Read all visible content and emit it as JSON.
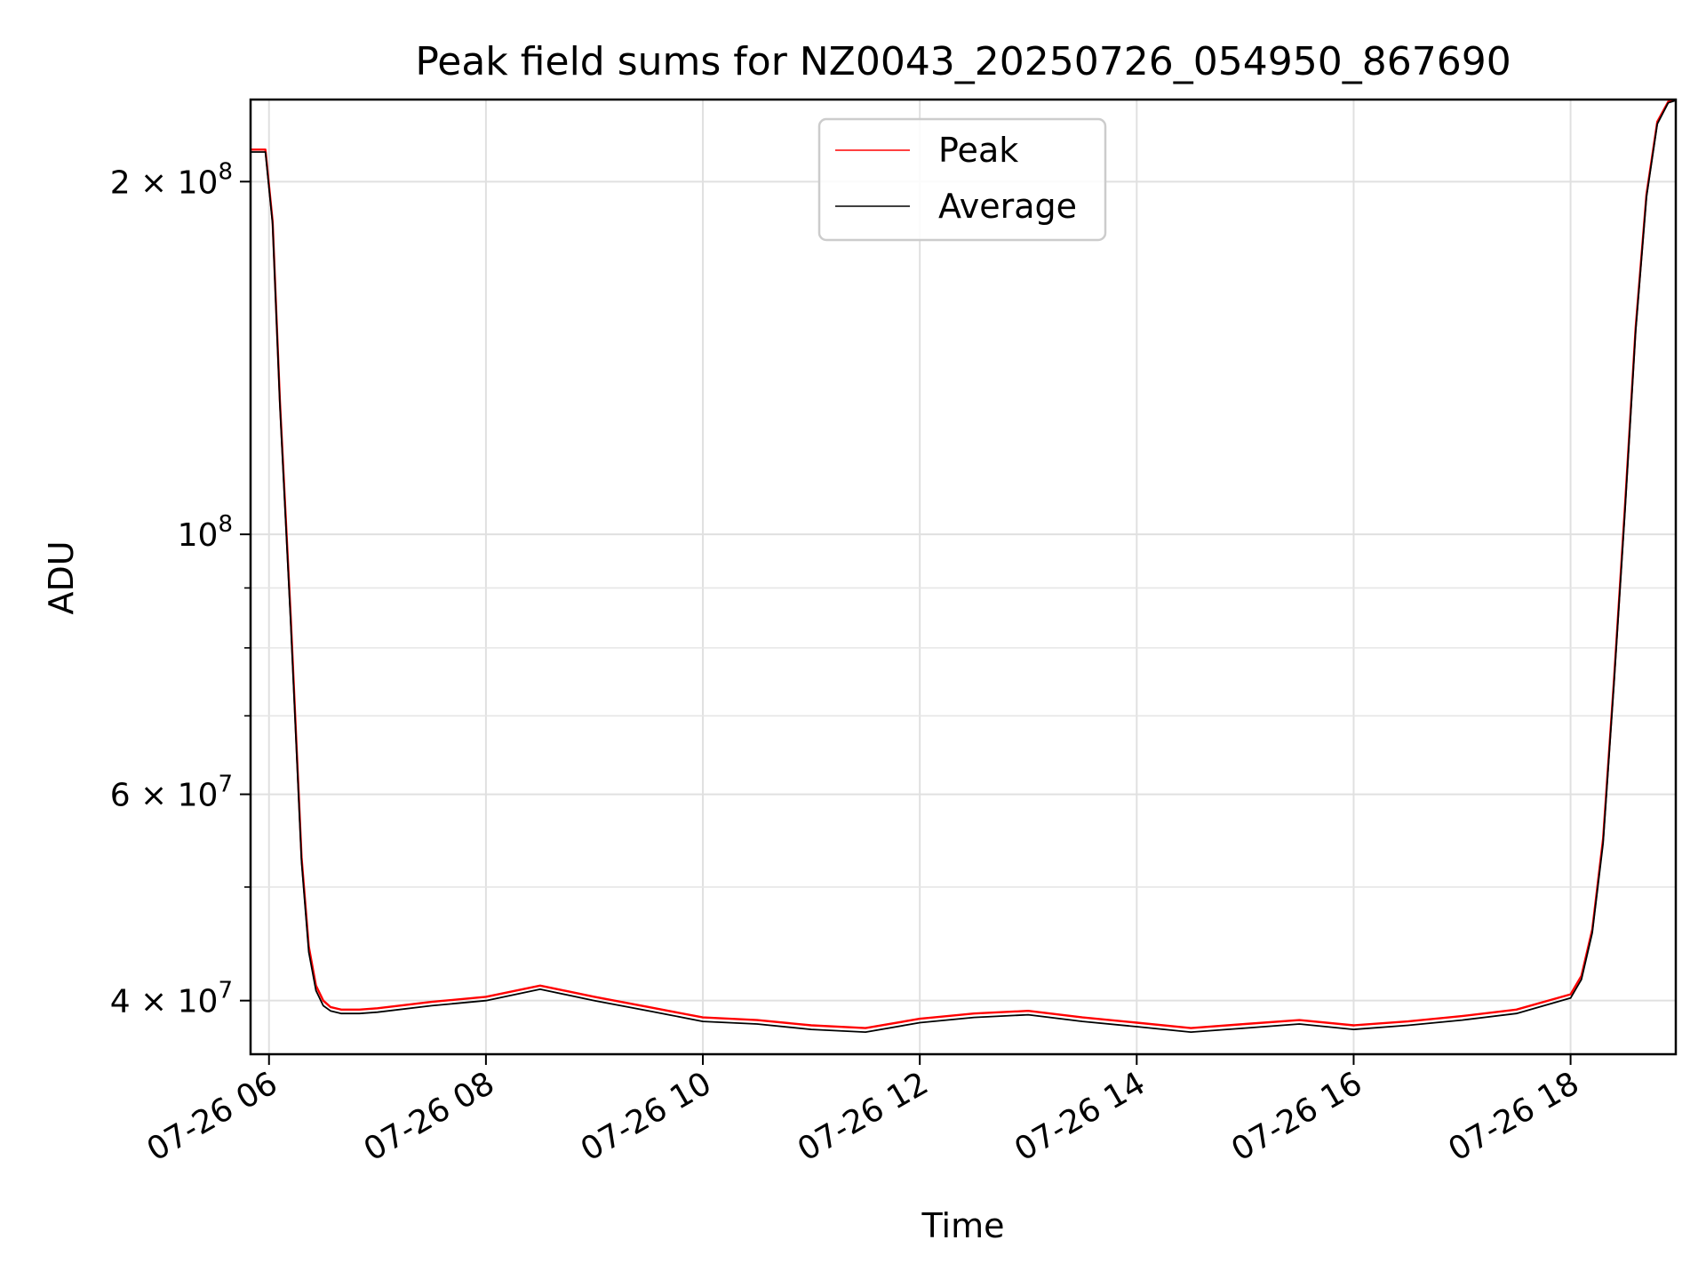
{
  "chart_data": {
    "type": "line",
    "title": "Peak field sums for NZ0043_20250726_054950_867690",
    "xlabel": "Time",
    "ylabel": "ADU",
    "y_scale": "log",
    "ylim": [
      36000000,
      235000000
    ],
    "xlim_hours": [
      5.83,
      18.97
    ],
    "grid": true,
    "legend_position": "top-center",
    "x_ticks": [
      {
        "hour": 6,
        "label": "07-26 06"
      },
      {
        "hour": 8,
        "label": "07-26 08"
      },
      {
        "hour": 10,
        "label": "07-26 10"
      },
      {
        "hour": 12,
        "label": "07-26 12"
      },
      {
        "hour": 14,
        "label": "07-26 14"
      },
      {
        "hour": 16,
        "label": "07-26 16"
      },
      {
        "hour": 18,
        "label": "07-26 18"
      }
    ],
    "y_ticks": [
      {
        "value": 40000000,
        "base": "4 × 10",
        "exp": "7"
      },
      {
        "value": 60000000,
        "base": "6 × 10",
        "exp": "7"
      },
      {
        "value": 100000000,
        "base": "10",
        "exp": "8"
      },
      {
        "value": 200000000,
        "base": "2 × 10",
        "exp": "8"
      }
    ],
    "y_minor_ticks": [
      50000000,
      70000000,
      80000000,
      90000000
    ],
    "series": [
      {
        "name": "Peak",
        "color": "#ff0000",
        "x": [
          "07-26 05:50",
          "07-26 05:58",
          "07-26 06:02",
          "07-26 06:06",
          "07-26 06:12",
          "07-26 06:18",
          "07-26 06:22",
          "07-26 06:26",
          "07-26 06:30",
          "07-26 06:34",
          "07-26 06:40",
          "07-26 06:50",
          "07-26 07:00",
          "07-26 07:30",
          "07-26 08:00",
          "07-26 08:30",
          "07-26 09:00",
          "07-26 09:30",
          "07-26 10:00",
          "07-26 10:30",
          "07-26 11:00",
          "07-26 11:30",
          "07-26 12:00",
          "07-26 12:30",
          "07-26 13:00",
          "07-26 13:30",
          "07-26 14:00",
          "07-26 14:30",
          "07-26 15:00",
          "07-26 15:30",
          "07-26 16:00",
          "07-26 16:30",
          "07-26 17:00",
          "07-26 17:30",
          "07-26 18:00",
          "07-26 18:06",
          "07-26 18:12",
          "07-26 18:18",
          "07-26 18:24",
          "07-26 18:30",
          "07-26 18:36",
          "07-26 18:42",
          "07-26 18:48",
          "07-26 18:54",
          "07-26 18:58"
        ],
        "values": [
          213000000,
          213000000,
          185000000,
          130000000,
          85000000,
          53000000,
          44500000,
          41200000,
          40000000,
          39500000,
          39300000,
          39300000,
          39400000,
          39900000,
          40300000,
          41200000,
          40300000,
          39500000,
          38700000,
          38500000,
          38100000,
          37900000,
          38600000,
          39000000,
          39200000,
          38700000,
          38300000,
          37900000,
          38200000,
          38500000,
          38100000,
          38400000,
          38800000,
          39300000,
          40500000,
          42000000,
          46000000,
          55000000,
          75000000,
          105000000,
          150000000,
          195000000,
          225000000,
          234000000,
          235000000
        ]
      },
      {
        "name": "Average",
        "color": "#000000",
        "x": [
          "07-26 05:50",
          "07-26 05:58",
          "07-26 06:02",
          "07-26 06:06",
          "07-26 06:12",
          "07-26 06:18",
          "07-26 06:22",
          "07-26 06:26",
          "07-26 06:30",
          "07-26 06:34",
          "07-26 06:40",
          "07-26 06:50",
          "07-26 07:00",
          "07-26 07:30",
          "07-26 08:00",
          "07-26 08:30",
          "07-26 09:00",
          "07-26 09:30",
          "07-26 10:00",
          "07-26 10:30",
          "07-26 11:00",
          "07-26 11:30",
          "07-26 12:00",
          "07-26 12:30",
          "07-26 13:00",
          "07-26 13:30",
          "07-26 14:00",
          "07-26 14:30",
          "07-26 15:00",
          "07-26 15:30",
          "07-26 16:00",
          "07-26 16:30",
          "07-26 17:00",
          "07-26 17:30",
          "07-26 18:00",
          "07-26 18:06",
          "07-26 18:12",
          "07-26 18:18",
          "07-26 18:24",
          "07-26 18:30",
          "07-26 18:36",
          "07-26 18:42",
          "07-26 18:48",
          "07-26 18:54",
          "07-26 18:58"
        ],
        "values": [
          212000000,
          212000000,
          184000000,
          129000000,
          84000000,
          52500000,
          44000000,
          40800000,
          39600000,
          39200000,
          39000000,
          39000000,
          39100000,
          39600000,
          40000000,
          40900000,
          40000000,
          39200000,
          38400000,
          38200000,
          37800000,
          37600000,
          38300000,
          38700000,
          38900000,
          38400000,
          38000000,
          37600000,
          37900000,
          38200000,
          37800000,
          38100000,
          38500000,
          39000000,
          40200000,
          41700000,
          45700000,
          54500000,
          74500000,
          104000000,
          149000000,
          194000000,
          224000000,
          233500000,
          234500000
        ]
      }
    ]
  }
}
